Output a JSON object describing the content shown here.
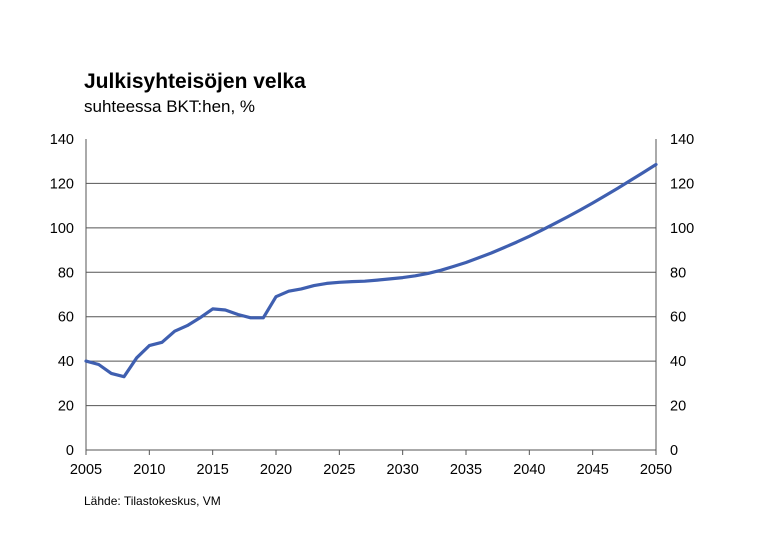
{
  "chart_data": {
    "type": "line",
    "title": "Julkisyhteisöjen velka",
    "subtitle": "suhteessa BKT:hen, %",
    "source": "Lähde: Tilastokeskus, VM",
    "xlabel": "",
    "ylabel": "",
    "xlim": [
      2005,
      2050
    ],
    "ylim": [
      0,
      140
    ],
    "x_ticks": [
      "2005",
      "2010",
      "2015",
      "2020",
      "2025",
      "2030",
      "2035",
      "2040",
      "2045",
      "2050"
    ],
    "y_ticks": [
      "0",
      "20",
      "40",
      "60",
      "80",
      "100",
      "120",
      "140"
    ],
    "y_axis_right": true,
    "grid": "horizontal",
    "line_color": "#3f5fb0",
    "series": [
      {
        "x": [
          2005,
          2006,
          2007,
          2008,
          2009,
          2010,
          2011,
          2012,
          2013,
          2014,
          2015,
          2016,
          2017,
          2018,
          2019,
          2020,
          2021,
          2022,
          2023,
          2024,
          2025,
          2026,
          2027,
          2028,
          2029,
          2030,
          2031,
          2032,
          2033,
          2034,
          2035,
          2036,
          2037,
          2038,
          2039,
          2040,
          2041,
          2042,
          2043,
          2044,
          2045,
          2046,
          2047,
          2048,
          2049,
          2050
        ],
        "values": [
          40,
          38.5,
          34.5,
          33,
          41.5,
          47,
          48.5,
          53.5,
          56,
          59.5,
          63.5,
          63,
          61,
          59.5,
          59.5,
          69,
          71.5,
          72.5,
          74,
          75,
          75.5,
          75.8,
          76,
          76.5,
          77,
          77.6,
          78.4,
          79.5,
          80.9,
          82.6,
          84.4,
          86.5,
          88.7,
          91.1,
          93.6,
          96.2,
          99,
          101.9,
          104.9,
          108,
          111.2,
          114.5,
          117.9,
          121.4,
          124.9,
          128.5
        ]
      }
    ]
  }
}
